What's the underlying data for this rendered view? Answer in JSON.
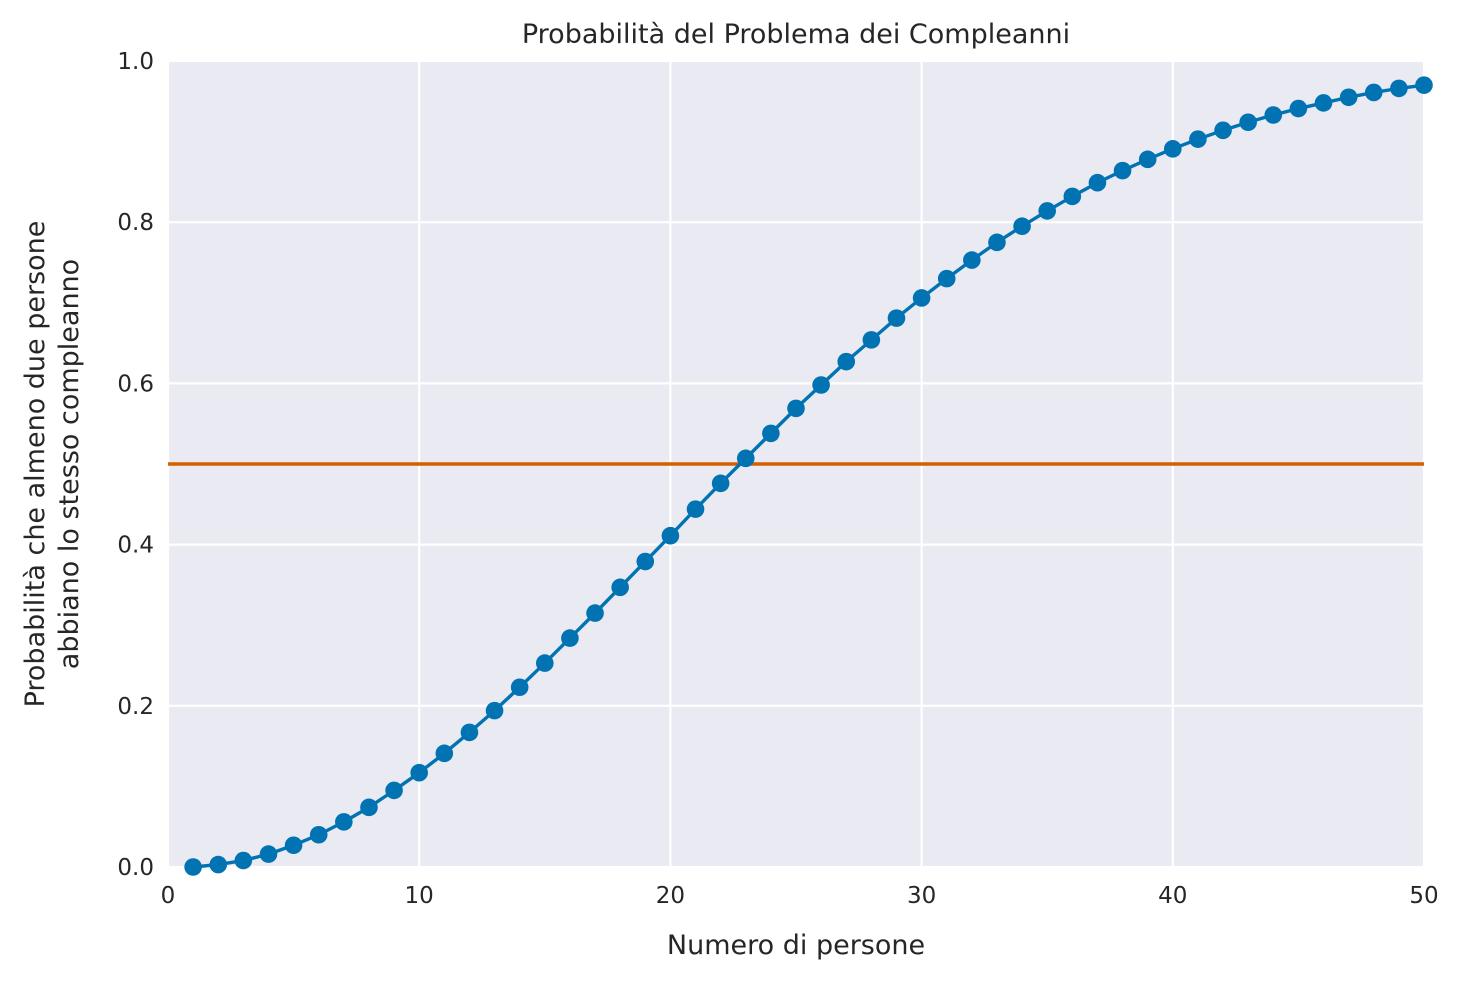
{
  "chart_data": {
    "type": "line",
    "title": "Probabilità del Problema dei Compleanni",
    "xlabel": "Numero di persone",
    "ylabel_lines": [
      "Probabilità che almeno due persone",
      "abbiano lo stesso compleanno"
    ],
    "xlim": [
      0,
      50
    ],
    "ylim": [
      0,
      1
    ],
    "xticks": [
      0,
      10,
      20,
      30,
      40,
      50
    ],
    "xtick_labels": [
      "0",
      "10",
      "20",
      "30",
      "40",
      "50"
    ],
    "yticks": [
      0,
      0.2,
      0.4,
      0.6,
      0.8,
      1.0
    ],
    "ytick_labels": [
      "0.0",
      "0.2",
      "0.4",
      "0.6",
      "0.8",
      "1.0"
    ],
    "grid": true,
    "series": [
      {
        "x": [
          1,
          2,
          3,
          4,
          5,
          6,
          7,
          8,
          9,
          10,
          11,
          12,
          13,
          14,
          15,
          16,
          17,
          18,
          19,
          20,
          21,
          22,
          23,
          24,
          25,
          26,
          27,
          28,
          29,
          30,
          31,
          32,
          33,
          34,
          35,
          36,
          37,
          38,
          39,
          40,
          41,
          42,
          43,
          44,
          45,
          46,
          47,
          48,
          49,
          50
        ],
        "values": [
          0.0,
          0.003,
          0.008,
          0.016,
          0.027,
          0.04,
          0.056,
          0.074,
          0.095,
          0.117,
          0.141,
          0.167,
          0.194,
          0.223,
          0.253,
          0.284,
          0.315,
          0.347,
          0.379,
          0.411,
          0.444,
          0.476,
          0.507,
          0.538,
          0.569,
          0.598,
          0.627,
          0.654,
          0.681,
          0.706,
          0.73,
          0.753,
          0.775,
          0.795,
          0.814,
          0.832,
          0.849,
          0.864,
          0.878,
          0.891,
          0.903,
          0.914,
          0.924,
          0.933,
          0.941,
          0.948,
          0.955,
          0.961,
          0.966,
          0.97
        ],
        "color": "#0173b2",
        "marker": "circle"
      }
    ],
    "reference_line": {
      "y": 0.5,
      "color": "#d55e00"
    },
    "colors": {
      "plot_background": "#eaeaf2",
      "grid": "#ffffff",
      "text": "#262626"
    }
  }
}
